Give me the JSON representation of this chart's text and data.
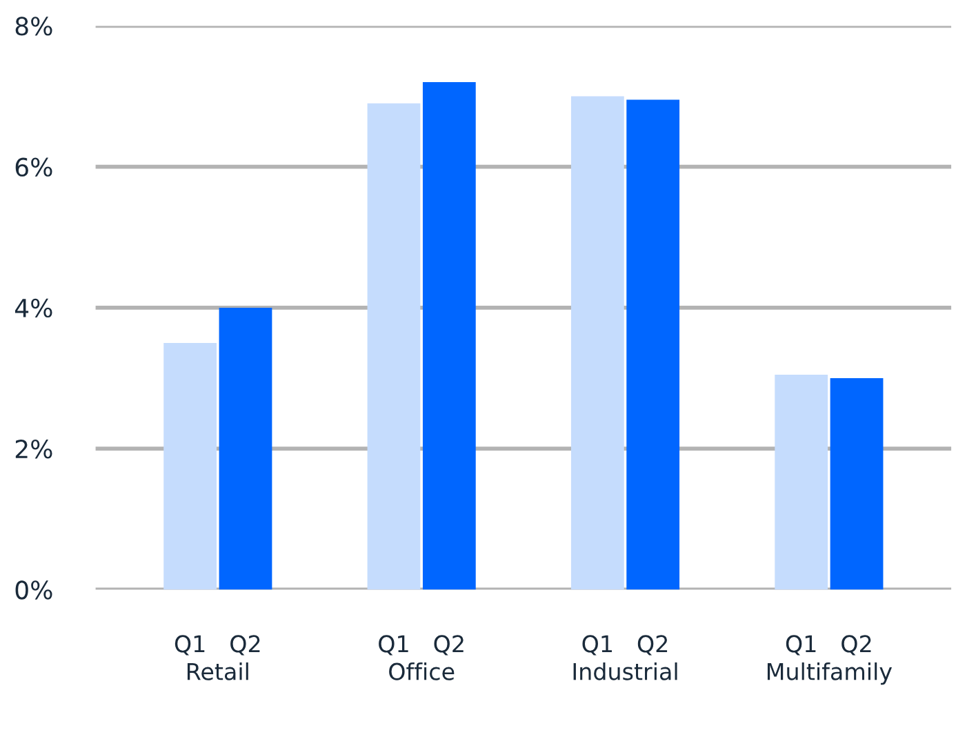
{
  "chart_data": {
    "type": "bar",
    "categories": [
      "Retail",
      "Office",
      "Industrial",
      "Multifamily"
    ],
    "series": [
      {
        "name": "Q1",
        "color": "#c5dcfd",
        "values": [
          3.5,
          6.9,
          7.0,
          3.05
        ]
      },
      {
        "name": "Q2",
        "color": "#0066ff",
        "values": [
          4.0,
          7.2,
          6.95,
          3.0
        ]
      }
    ],
    "ylim": [
      0,
      8
    ],
    "yticks": [
      {
        "value": 0,
        "label": "0%"
      },
      {
        "value": 2,
        "label": "2%"
      },
      {
        "value": 4,
        "label": "4%"
      },
      {
        "value": 6,
        "label": "6%"
      },
      {
        "value": 8,
        "label": "8%"
      }
    ],
    "grid": "y",
    "legend": false
  }
}
